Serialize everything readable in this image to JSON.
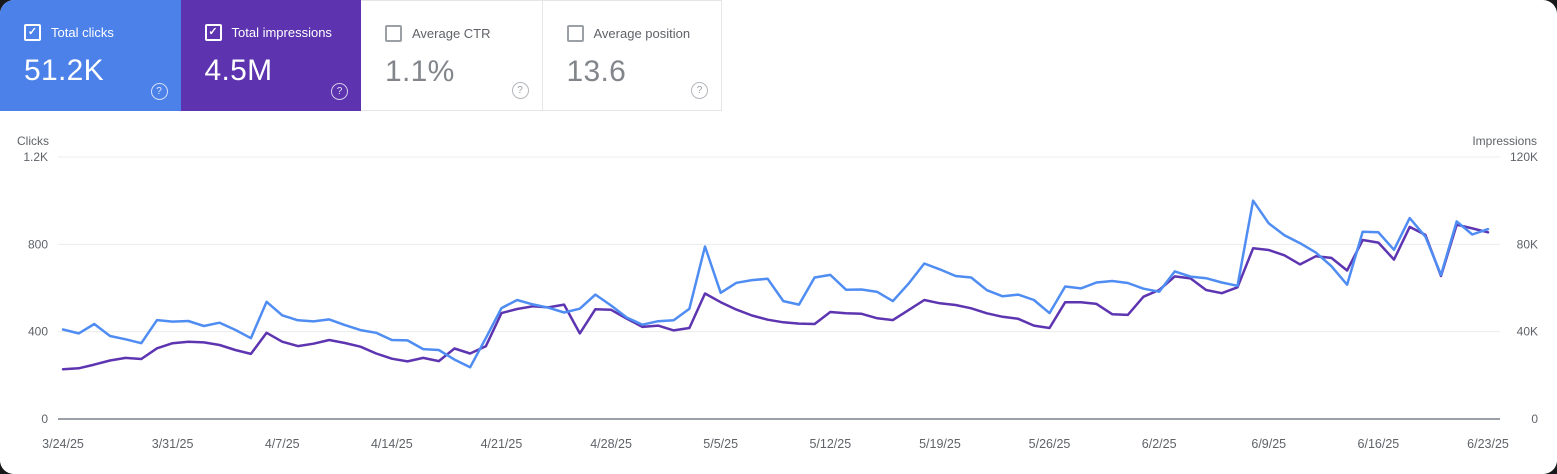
{
  "cards": [
    {
      "label": "Total clicks",
      "value": "51.2K",
      "checked": true
    },
    {
      "label": "Total impressions",
      "value": "4.5M",
      "checked": true
    },
    {
      "label": "Average CTR",
      "value": "1.1%",
      "checked": false
    },
    {
      "label": "Average position",
      "value": "13.6",
      "checked": false
    }
  ],
  "icons": {
    "check": "✓",
    "help": "?"
  },
  "colors": {
    "clicks_card": "#4c81ea",
    "impressions_card": "#5d33af",
    "clicks_line": "#4f8df2",
    "impressions_line": "#5e35b1",
    "grid": "#ececec",
    "axis_line": "#9aa0a6",
    "tick_text": "#5f6368"
  },
  "chart_data": {
    "type": "line",
    "x_tick_labels": [
      "3/24/25",
      "3/31/25",
      "4/7/25",
      "4/14/25",
      "4/21/25",
      "4/28/25",
      "5/5/25",
      "5/12/25",
      "5/19/25",
      "5/26/25",
      "6/2/25",
      "6/9/25",
      "6/16/25",
      "6/23/25"
    ],
    "left_axis": {
      "title": "Clicks",
      "ticks": [
        "1.2K",
        "800",
        "400",
        "0"
      ],
      "min": 0,
      "max": 1200
    },
    "right_axis": {
      "title": "Impressions",
      "ticks": [
        "120K",
        "80K",
        "40K",
        "0"
      ],
      "min": 0,
      "max": 120000
    },
    "grid": "horizontal",
    "legend_position": "none",
    "series": [
      {
        "name": "Total clicks",
        "axis": "left",
        "color": "#4f8df2",
        "values": [
          410,
          392,
          435,
          380,
          365,
          347,
          453,
          446,
          449,
          426,
          441,
          408,
          370,
          537,
          475,
          452,
          447,
          456,
          430,
          407,
          395,
          362,
          360,
          320,
          316,
          272,
          237,
          370,
          508,
          545,
          525,
          510,
          488,
          505,
          570,
          520,
          465,
          432,
          448,
          452,
          505,
          790,
          578,
          624,
          636,
          642,
          540,
          524,
          648,
          660,
          592,
          593,
          582,
          540,
          620,
          712,
          685,
          655,
          648,
          590,
          562,
          570,
          545,
          485,
          607,
          598,
          625,
          632,
          623,
          597,
          583,
          676,
          652,
          645,
          625,
          610,
          1000,
          896,
          842,
          805,
          763,
          700,
          615,
          858,
          855,
          775,
          920,
          835,
          660,
          905,
          845,
          870
        ]
      },
      {
        "name": "Total impressions",
        "axis": "right",
        "color": "#5e35b1",
        "values": [
          22800,
          23200,
          24900,
          26800,
          28000,
          27500,
          32400,
          34700,
          35400,
          35100,
          33900,
          31600,
          29800,
          39500,
          35400,
          33400,
          34500,
          36200,
          34800,
          33100,
          30000,
          27600,
          26400,
          28000,
          26500,
          32300,
          30000,
          33300,
          48500,
          50400,
          51600,
          51100,
          52400,
          39200,
          50300,
          50000,
          46000,
          42200,
          42800,
          40600,
          41700,
          57500,
          53500,
          50100,
          47400,
          45500,
          44300,
          43700,
          43500,
          49000,
          48400,
          48200,
          46100,
          45300,
          49900,
          54500,
          53000,
          52200,
          50700,
          48400,
          46800,
          45900,
          42800,
          41700,
          53500,
          53500,
          52700,
          48000,
          47700,
          56000,
          59100,
          65300,
          64400,
          59100,
          57600,
          60300,
          78200,
          77400,
          75000,
          70800,
          74500,
          73800,
          68000,
          82000,
          80800,
          73000,
          88000,
          84300,
          65500,
          89000,
          87300,
          85500
        ]
      }
    ]
  }
}
